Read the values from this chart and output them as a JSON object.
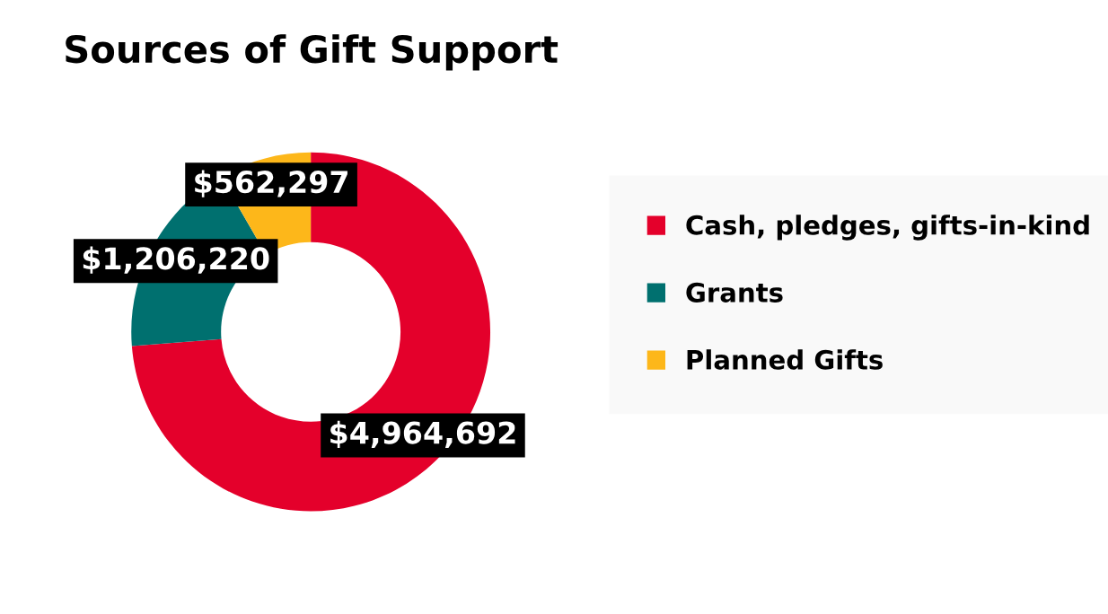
{
  "chart_data": {
    "type": "donut",
    "title": "Sources of Gift Support",
    "categories": [
      "Cash, pledges, gifts-in-kind",
      "Grants",
      "Planned Gifts"
    ],
    "values": [
      4964692,
      1206220,
      562297
    ],
    "colors": [
      "#e4002b",
      "#00706f",
      "#fdb71a"
    ],
    "value_labels": [
      "$4,964,692",
      "$1,206,220",
      "$562,297"
    ],
    "legend": "right"
  }
}
